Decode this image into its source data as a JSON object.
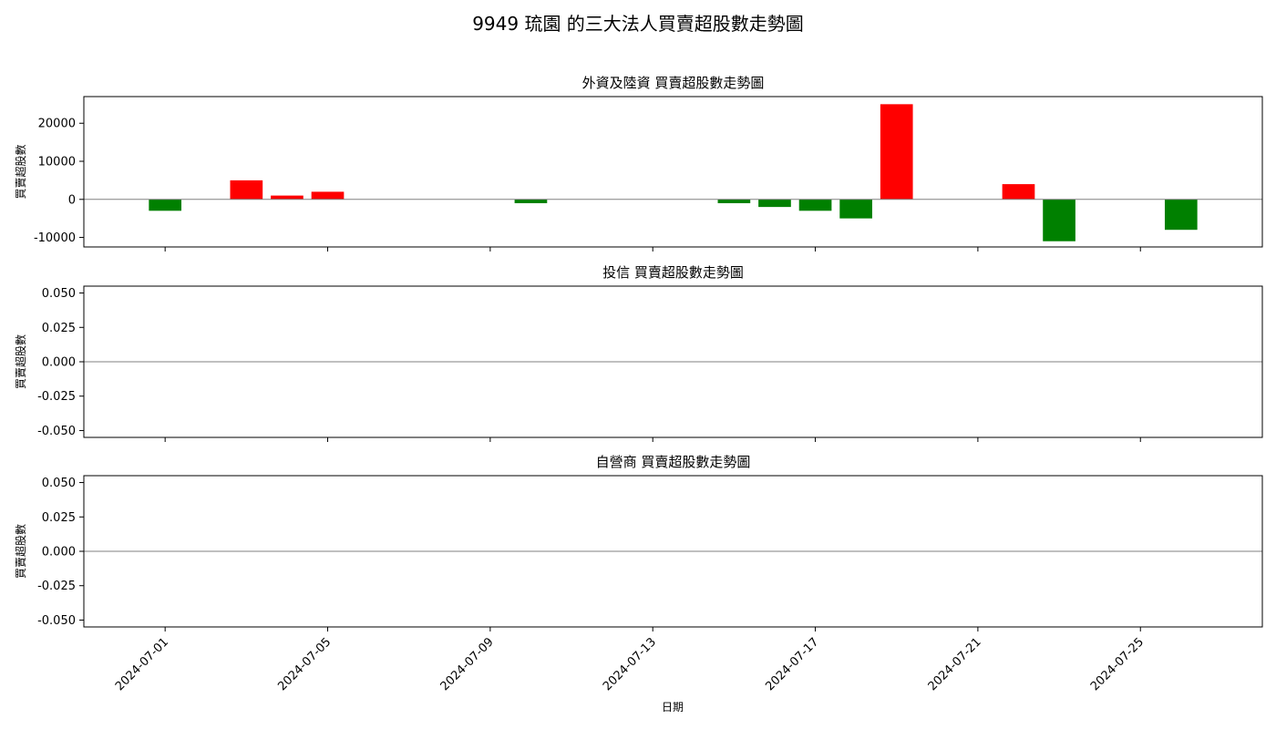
{
  "figure": {
    "title": "9949 琉園 的三大法人買賣超股數走勢圖",
    "xlabel": "日期"
  },
  "colors": {
    "positive": "#ff0000",
    "negative": "#008000",
    "zero_line": "#808080",
    "frame": "#000000"
  },
  "chart_data": [
    {
      "type": "bar",
      "title": "外資及陸資 買賣超股數走勢圖",
      "ylabel": "買賣超股數",
      "ylim": [
        -12500,
        27000
      ],
      "yticks": [
        -10000,
        0,
        10000,
        20000
      ],
      "ytick_labels": [
        "-10000",
        "0",
        "10000",
        "20000"
      ],
      "x": [
        "2024-07-01",
        "2024-07-03",
        "2024-07-04",
        "2024-07-05",
        "2024-07-10",
        "2024-07-15",
        "2024-07-16",
        "2024-07-17",
        "2024-07-18",
        "2024-07-19",
        "2024-07-22",
        "2024-07-23",
        "2024-07-26"
      ],
      "values": [
        -3000,
        5000,
        1000,
        2000,
        -1000,
        -1000,
        -2000,
        -3000,
        -5000,
        25000,
        4000,
        -11000,
        -8000
      ]
    },
    {
      "type": "bar",
      "title": "投信 買賣超股數走勢圖",
      "ylabel": "買賣超股數",
      "ylim": [
        -0.055,
        0.055
      ],
      "yticks": [
        -0.05,
        -0.025,
        0,
        0.025,
        0.05
      ],
      "ytick_labels": [
        "-0.050",
        "-0.025",
        "0.000",
        "0.025",
        "0.050"
      ],
      "x": [],
      "values": []
    },
    {
      "type": "bar",
      "title": "自營商 買賣超股數走勢圖",
      "ylabel": "買賣超股數",
      "ylim": [
        -0.055,
        0.055
      ],
      "yticks": [
        -0.05,
        -0.025,
        0,
        0.025,
        0.05
      ],
      "ytick_labels": [
        "-0.050",
        "-0.025",
        "0.000",
        "0.025",
        "0.050"
      ],
      "x": [],
      "values": []
    }
  ],
  "xaxis": {
    "range": [
      "2024-06-29",
      "2024-07-28"
    ],
    "ticks": [
      "2024-07-01",
      "2024-07-05",
      "2024-07-09",
      "2024-07-13",
      "2024-07-17",
      "2024-07-21",
      "2024-07-25"
    ]
  }
}
